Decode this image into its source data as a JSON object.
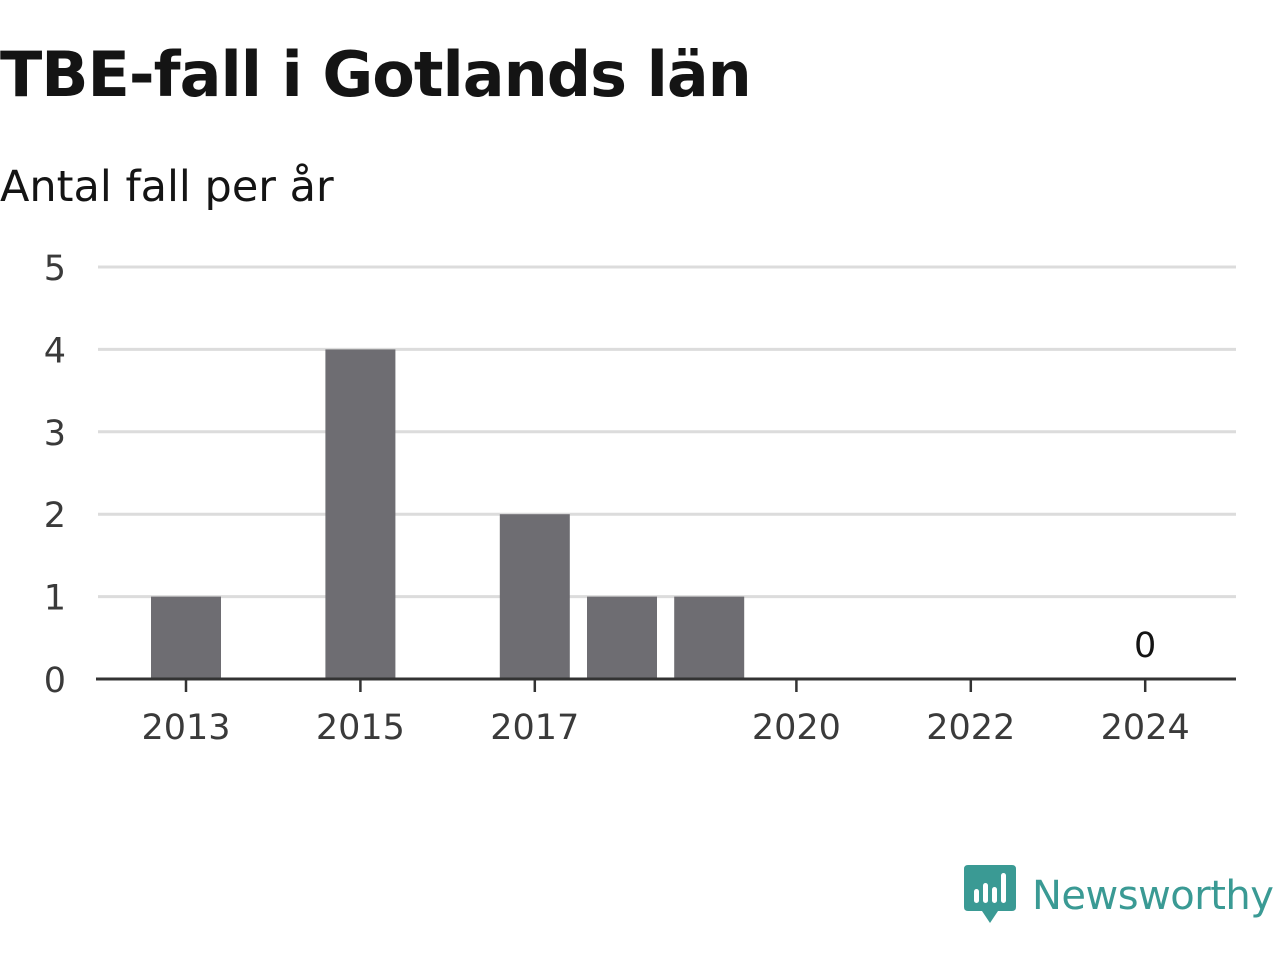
{
  "header": {
    "title": "TBE-fall i Gotlands län",
    "subtitle": "Antal fall per år"
  },
  "brand": {
    "name": "Newsworthy",
    "logo_icon": "newsworthy-chart-bubble-icon",
    "color": "#3a9a94"
  },
  "colors": {
    "bar": "#6e6d72",
    "grid": "#dcdcdc",
    "axis": "#333333"
  },
  "chart_data": {
    "type": "bar",
    "title": "TBE-fall i Gotlands län",
    "subtitle": "Antal fall per år",
    "xlabel": "",
    "ylabel": "",
    "categories": [
      "2013",
      "2014",
      "2015",
      "2016",
      "2017",
      "2018",
      "2019",
      "2020",
      "2021",
      "2022",
      "2023",
      "2024"
    ],
    "values": [
      1,
      0,
      4,
      0,
      2,
      1,
      1,
      0,
      0,
      0,
      0,
      0
    ],
    "x_tick_labels": [
      "2013",
      "2015",
      "2017",
      "2020",
      "2022",
      "2024"
    ],
    "y_ticks": [
      "0",
      "1",
      "2",
      "3",
      "4",
      "5"
    ],
    "ylim": [
      0,
      5
    ],
    "grid": true,
    "legend": "none",
    "data_labels": [
      {
        "category": "2024",
        "text": "0"
      }
    ]
  }
}
